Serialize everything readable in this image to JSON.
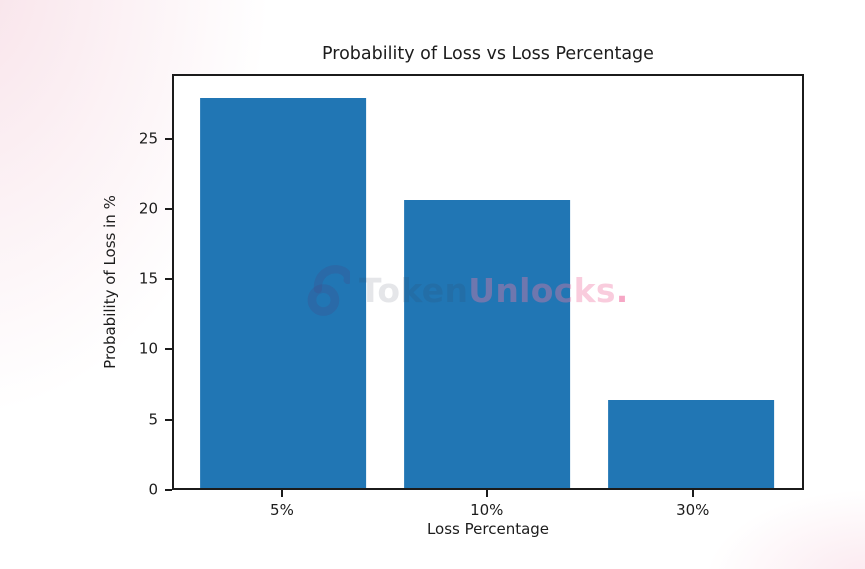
{
  "colors": {
    "bar": "#2176b4",
    "axis": "#1b1b1b",
    "text": "#1c1c1c",
    "background_tint": "#f8e2e9",
    "watermark_token": "rgba(55,65,85,0.13)",
    "watermark_unlocks": "rgba(240,120,165,0.38)",
    "watermark_dot": "rgba(238,95,150,0.55)",
    "watermark_lock": "rgba(70,75,135,0.28)"
  },
  "chart_data": {
    "type": "bar",
    "title": "Probability of Loss vs Loss Percentage",
    "xlabel": "Loss Percentage",
    "ylabel": "Probability of Loss in %",
    "categories": [
      "5%",
      "10%",
      "30%"
    ],
    "values": [
      28.0,
      20.7,
      6.3
    ],
    "yticks": [
      0,
      5,
      10,
      15,
      20,
      25
    ],
    "ylim": [
      0,
      29.6
    ],
    "grid": false,
    "legend_position": "none"
  },
  "watermark": {
    "icon": "unlock-padlock-icon",
    "text_token": "Token",
    "text_unlocks": "Unlocks",
    "text_dot": "."
  }
}
